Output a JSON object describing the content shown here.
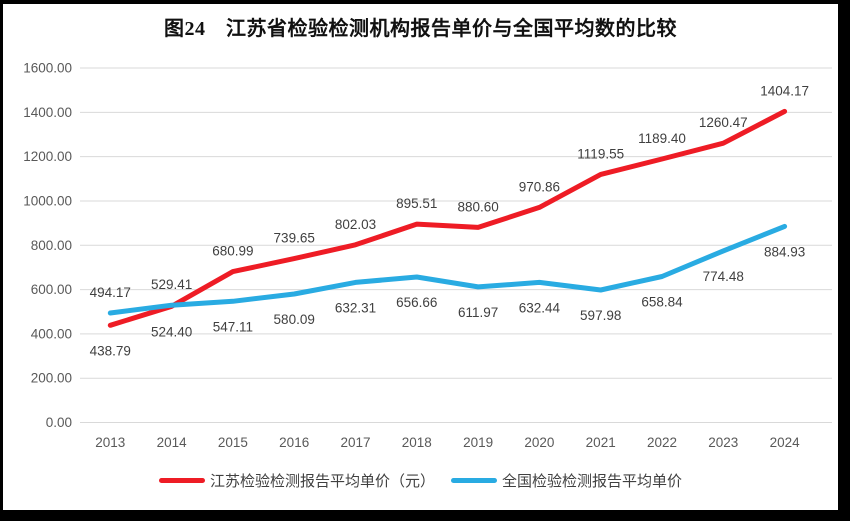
{
  "window": {
    "background": "#ffffff",
    "frame_color": "#000000"
  },
  "chart_data": {
    "type": "line",
    "title": "图24　江苏省检验检测机构报告单价与全国平均数的比较",
    "categories": [
      "2013",
      "2014",
      "2015",
      "2016",
      "2017",
      "2018",
      "2019",
      "2020",
      "2021",
      "2022",
      "2023",
      "2024"
    ],
    "y_ticks": [
      0,
      200,
      400,
      600,
      800,
      1000,
      1200,
      1400,
      1600
    ],
    "ylim": [
      0,
      1600
    ],
    "grid": true,
    "gridline_color": "#d9d9d9",
    "legend_position": "bottom",
    "series": [
      {
        "id": "jiangsu",
        "name": "江苏检验检测报告平均单价（元）",
        "color": "#ee1c25",
        "values": [
          438.79,
          524.4,
          680.99,
          739.65,
          802.03,
          895.51,
          880.6,
          970.86,
          1119.55,
          1189.4,
          1260.47,
          1404.17
        ],
        "label_side": [
          "below",
          "below",
          "above",
          "above",
          "above",
          "above",
          "above",
          "above",
          "above",
          "above",
          "above",
          "above"
        ]
      },
      {
        "id": "national",
        "name": "全国检验检测报告平均单价",
        "color": "#29abe2",
        "values": [
          494.17,
          529.41,
          547.11,
          580.09,
          632.31,
          656.66,
          611.97,
          632.44,
          597.98,
          658.84,
          774.48,
          884.93
        ],
        "label_side": [
          "above",
          "above",
          "below",
          "below",
          "below",
          "below",
          "below",
          "below",
          "below",
          "below",
          "below",
          "below"
        ]
      }
    ]
  }
}
